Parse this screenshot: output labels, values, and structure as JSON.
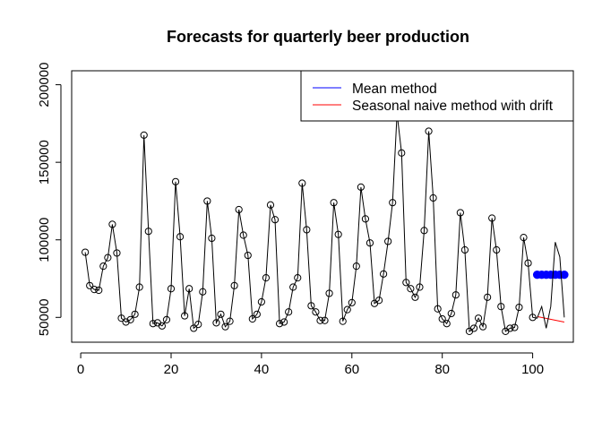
{
  "chart_data": {
    "type": "line",
    "title": "Forecasts for quarterly beer production",
    "xlabel": "",
    "ylabel": "",
    "xlim": [
      -2,
      109
    ],
    "ylim": [
      34000,
      209000
    ],
    "x_ticks": [
      0,
      20,
      40,
      60,
      80,
      100
    ],
    "y_ticks": [
      50000,
      100000,
      150000,
      200000
    ],
    "grid": false,
    "legend_position": "top-right",
    "legend": [
      {
        "label": "Mean method",
        "color": "#0000ff"
      },
      {
        "label": "Seasonal naive method with drift",
        "color": "#ff0000"
      }
    ],
    "series": [
      {
        "kind": "observed",
        "color": "#000000",
        "x": [
          1,
          2,
          3,
          4,
          5,
          6,
          7,
          8,
          9,
          10,
          11,
          12,
          13,
          14,
          15,
          16,
          17,
          18,
          19,
          20,
          21,
          22,
          23,
          24,
          25,
          26,
          27,
          28,
          29,
          30,
          31,
          32,
          33,
          34,
          35,
          36,
          37,
          38,
          39,
          40,
          41,
          42,
          43,
          44,
          45,
          46,
          47,
          48,
          49,
          50,
          51,
          52,
          53,
          54,
          55,
          56,
          57,
          58,
          59,
          60,
          61,
          62,
          63,
          64,
          65,
          66,
          67,
          68,
          69,
          70,
          71,
          72,
          73,
          74,
          75,
          76,
          77,
          78,
          79,
          80,
          81,
          82,
          83,
          84,
          85,
          86,
          87,
          88,
          89,
          90,
          91,
          92,
          93,
          94,
          95,
          96,
          97,
          98,
          99,
          100
        ],
        "y": [
          92000,
          70500,
          68000,
          67500,
          83000,
          88500,
          110000,
          91500,
          49500,
          47000,
          48500,
          52000,
          69500,
          167500,
          105500,
          46000,
          46500,
          44500,
          48500,
          68500,
          137500,
          102000,
          51000,
          68500,
          43000,
          45500,
          66500,
          125000,
          101000,
          46500,
          52000,
          44000,
          47500,
          70500,
          119500,
          103000,
          90000,
          49000,
          52000,
          60000,
          75500,
          122500,
          113000,
          46000,
          47000,
          53500,
          69500,
          75500,
          136500,
          106500,
          57500,
          53500,
          48000,
          48000,
          65500,
          124000,
          103500,
          47500,
          55000,
          59500,
          83000,
          134000,
          113500,
          98000,
          59000,
          61000,
          78000,
          99000,
          124000,
          181500,
          156000,
          72500,
          68500,
          63000,
          69500,
          106000,
          170000,
          127000,
          55500,
          49000,
          46000,
          52500,
          64500,
          117500,
          93500,
          41000,
          43000,
          49500,
          44000,
          63000,
          114000,
          93500,
          57000,
          41000,
          43000,
          43500,
          56500,
          101500,
          85000,
          50000
        ]
      },
      {
        "name": "Mean method",
        "kind": "forecast-points",
        "color": "#0000ff",
        "x": [
          101,
          102,
          103,
          104,
          105,
          106,
          107
        ],
        "y": [
          77500,
          77500,
          77500,
          77500,
          77500,
          77500,
          77500
        ]
      },
      {
        "name": "Seasonal naive method with drift",
        "kind": "forecast-line",
        "color": "#ff0000",
        "x": [
          101,
          107
        ],
        "y": [
          50500,
          47000
        ]
      },
      {
        "kind": "actual-continuation",
        "color": "#000000",
        "x": [
          100,
          101,
          102,
          103,
          104,
          105,
          106,
          107
        ],
        "y": [
          50000,
          49500,
          57000,
          43000,
          57000,
          98500,
          89000,
          50000
        ]
      }
    ]
  }
}
